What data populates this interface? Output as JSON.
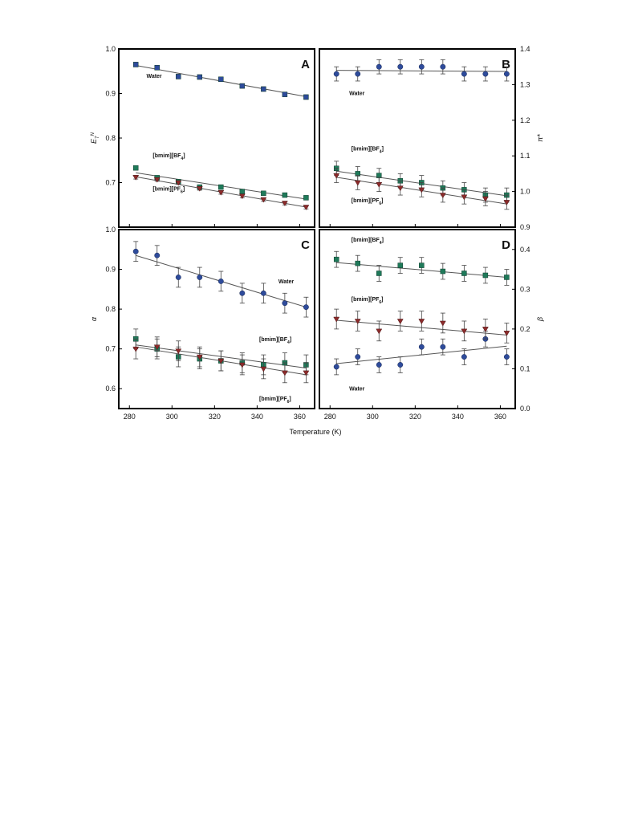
{
  "figure": {
    "x_axis_title": "Temperature (K)"
  },
  "colors": {
    "Water": "#2e4b9b",
    "BF4": "#1f7a5a",
    "PF6": "#8c2b2b",
    "fit": "#555555",
    "frame": "#000000"
  },
  "chart_data": [
    {
      "panel": "A",
      "type": "scatter",
      "ylabel": "E_T^N",
      "xlim": [
        275,
        367
      ],
      "ylim": [
        0.6,
        1.0
      ],
      "yticks": [
        0.7,
        0.8,
        0.9,
        1.0
      ],
      "xticks": [
        280,
        300,
        320,
        340,
        360
      ],
      "x": [
        283,
        293,
        303,
        313,
        323,
        333,
        343,
        353,
        363
      ],
      "series": [
        {
          "name": "Water",
          "marker": "square",
          "y": [
            0.965,
            0.958,
            0.938,
            0.937,
            0.932,
            0.917,
            0.91,
            0.898,
            0.892
          ],
          "err": [
            0.005,
            0.005,
            0.005,
            0.005,
            0.005,
            0.005,
            0.005,
            0.005,
            0.005
          ],
          "fit": [
            0.963,
            0.893
          ]
        },
        {
          "name": "[bmim][BF4]",
          "marker": "square",
          "y": [
            0.733,
            0.711,
            0.702,
            0.69,
            0.69,
            0.68,
            0.676,
            0.672,
            0.666
          ],
          "err": [
            0.004,
            0.004,
            0.004,
            0.004,
            0.004,
            0.004,
            0.004,
            0.004,
            0.004
          ],
          "fit": [
            0.722,
            0.663
          ]
        },
        {
          "name": "[bmim][PF6]",
          "marker": "triangle-down",
          "y": [
            0.712,
            0.707,
            0.7,
            0.687,
            0.678,
            0.67,
            0.662,
            0.654,
            0.645
          ],
          "err": [
            0.004,
            0.004,
            0.004,
            0.004,
            0.004,
            0.004,
            0.004,
            0.004,
            0.004
          ],
          "fit": [
            0.713,
            0.645
          ]
        }
      ],
      "labels": [
        {
          "text": "Water",
          "series": "Water",
          "at": [
            288,
            0.935
          ]
        },
        {
          "text": "[bmim][BF4]",
          "series": "[bmim][BF4]",
          "at": [
            291,
            0.757
          ]
        },
        {
          "text": "[bmim][PF6]",
          "series": "[bmim][PF6]",
          "at": [
            291,
            0.682
          ]
        }
      ]
    },
    {
      "panel": "B",
      "type": "scatter",
      "ylabel": "π*",
      "xlim": [
        275,
        367
      ],
      "ylim": [
        0.9,
        1.4
      ],
      "yticks": [
        0.9,
        1.0,
        1.1,
        1.2,
        1.3,
        1.4
      ],
      "xticks": [
        280,
        300,
        320,
        340,
        360
      ],
      "x": [
        283,
        293,
        303,
        313,
        323,
        333,
        343,
        353,
        363
      ],
      "series": [
        {
          "name": "Water",
          "marker": "circle",
          "y": [
            1.33,
            1.33,
            1.35,
            1.35,
            1.35,
            1.35,
            1.33,
            1.33,
            1.33
          ],
          "err": [
            0.02,
            0.02,
            0.02,
            0.02,
            0.02,
            0.02,
            0.02,
            0.02,
            0.02
          ],
          "fit": [
            1.34,
            1.337
          ]
        },
        {
          "name": "[bmim][BF4]",
          "marker": "square",
          "y": [
            1.065,
            1.05,
            1.045,
            1.03,
            1.025,
            1.01,
            1.005,
            0.99,
            0.99
          ],
          "err": [
            0.02,
            0.02,
            0.02,
            0.02,
            0.02,
            0.02,
            0.02,
            0.02,
            0.02
          ],
          "fit": [
            1.057,
            0.988
          ]
        },
        {
          "name": "[bmim][PF6]",
          "marker": "triangle-down",
          "y": [
            1.045,
            1.025,
            1.02,
            1.01,
            1.005,
            0.99,
            0.985,
            0.98,
            0.97
          ],
          "err": [
            0.02,
            0.02,
            0.02,
            0.02,
            0.02,
            0.02,
            0.02,
            0.02,
            0.02
          ],
          "fit": [
            1.04,
            0.965
          ]
        }
      ],
      "labels": [
        {
          "text": "Water",
          "series": "Water",
          "at": [
            289,
            1.27
          ]
        },
        {
          "text": "[bmim][BF4]",
          "series": "[bmim][BF4]",
          "at": [
            290,
            1.115
          ]
        },
        {
          "text": "[bmim][PF6]",
          "series": "[bmim][PF6]",
          "at": [
            290,
            0.97
          ]
        }
      ]
    },
    {
      "panel": "C",
      "type": "scatter",
      "ylabel": "α",
      "xlim": [
        275,
        367
      ],
      "ylim": [
        0.55,
        1.0
      ],
      "yticks": [
        0.6,
        0.7,
        0.8,
        0.9,
        1.0
      ],
      "xticks": [
        280,
        300,
        320,
        340,
        360
      ],
      "x": [
        283,
        293,
        303,
        313,
        323,
        333,
        343,
        353,
        363
      ],
      "series": [
        {
          "name": "Water",
          "marker": "circle",
          "y": [
            0.945,
            0.935,
            0.88,
            0.88,
            0.87,
            0.84,
            0.84,
            0.815,
            0.805
          ],
          "err": [
            0.025,
            0.025,
            0.025,
            0.025,
            0.025,
            0.025,
            0.025,
            0.025,
            0.025
          ],
          "fit": [
            0.935,
            0.805
          ]
        },
        {
          "name": "[bmim][BF4]",
          "marker": "square",
          "y": [
            0.725,
            0.7,
            0.68,
            0.675,
            0.67,
            0.665,
            0.66,
            0.665,
            0.66
          ],
          "err": [
            0.025,
            0.025,
            0.025,
            0.025,
            0.025,
            0.025,
            0.025,
            0.025,
            0.025
          ],
          "fit": [
            0.71,
            0.652
          ]
        },
        {
          "name": "[bmim][PF6]",
          "marker": "triangle-down",
          "y": [
            0.7,
            0.705,
            0.695,
            0.68,
            0.67,
            0.66,
            0.65,
            0.64,
            0.64
          ],
          "err": [
            0.025,
            0.025,
            0.025,
            0.025,
            0.025,
            0.025,
            0.025,
            0.025,
            0.025
          ],
          "fit": [
            0.705,
            0.635
          ]
        }
      ],
      "labels": [
        {
          "text": "Water",
          "series": "Water",
          "at": [
            350,
            0.865
          ]
        },
        {
          "text": "[bmim][BF4]",
          "series": "[bmim][BF4]",
          "at": [
            341,
            0.72
          ]
        },
        {
          "text": "[bmim][PF6]",
          "series": "[bmim][PF6]",
          "at": [
            341,
            0.57
          ]
        }
      ]
    },
    {
      "panel": "D",
      "type": "scatter",
      "ylabel": "β",
      "xlim": [
        275,
        367
      ],
      "ylim": [
        0.0,
        0.45
      ],
      "yticks": [
        0.0,
        0.1,
        0.2,
        0.3,
        0.4
      ],
      "xticks": [
        280,
        300,
        320,
        340,
        360
      ],
      "x": [
        283,
        293,
        303,
        313,
        323,
        333,
        343,
        353,
        363
      ],
      "series": [
        {
          "name": "Water",
          "marker": "circle",
          "y": [
            0.105,
            0.13,
            0.11,
            0.11,
            0.155,
            0.155,
            0.13,
            0.175,
            0.13
          ],
          "err": [
            0.02,
            0.02,
            0.02,
            0.02,
            0.02,
            0.02,
            0.02,
            0.02,
            0.02
          ],
          "fit": [
            0.113,
            0.157
          ]
        },
        {
          "name": "[bmim][BF4]",
          "marker": "square",
          "y": [
            0.375,
            0.365,
            0.34,
            0.36,
            0.36,
            0.345,
            0.34,
            0.335,
            0.33
          ],
          "err": [
            0.02,
            0.02,
            0.02,
            0.02,
            0.02,
            0.02,
            0.02,
            0.02,
            0.02
          ],
          "fit": [
            0.367,
            0.33
          ]
        },
        {
          "name": "[bmim][PF6]",
          "marker": "triangle-down",
          "y": [
            0.225,
            0.22,
            0.195,
            0.22,
            0.22,
            0.215,
            0.195,
            0.2,
            0.19
          ],
          "err": [
            0.025,
            0.025,
            0.025,
            0.025,
            0.025,
            0.025,
            0.025,
            0.025,
            0.025
          ],
          "fit": [
            0.222,
            0.185
          ]
        }
      ],
      "labels": [
        {
          "text": "[bmim][BF4]",
          "series": "[bmim][BF4]",
          "at": [
            290,
            0.42
          ]
        },
        {
          "text": "[bmim][PF6]",
          "series": "[bmim][PF6]",
          "at": [
            290,
            0.27
          ]
        },
        {
          "text": "Water",
          "series": "Water",
          "at": [
            289,
            0.045
          ]
        }
      ]
    }
  ]
}
